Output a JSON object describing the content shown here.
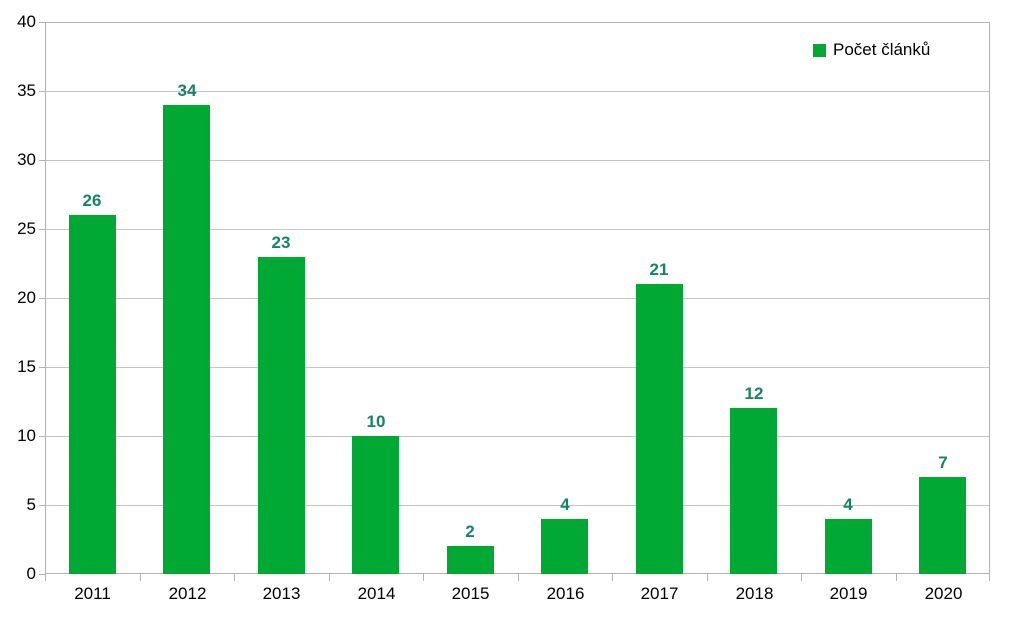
{
  "chart_data": {
    "type": "bar",
    "title": "",
    "xlabel": "",
    "ylabel": "",
    "categories": [
      "2011",
      "2012",
      "2013",
      "2014",
      "2015",
      "2016",
      "2017",
      "2018",
      "2019",
      "2020"
    ],
    "series": [
      {
        "name": "Počet článků",
        "values": [
          26,
          34,
          23,
          10,
          2,
          4,
          21,
          12,
          4,
          7
        ]
      }
    ],
    "data_labels_shown": true,
    "ylim": [
      0,
      40
    ],
    "ytick_step": 5,
    "yticks": [
      0,
      5,
      10,
      15,
      20,
      25,
      30,
      35,
      40
    ],
    "grid": "horizontal",
    "legend": {
      "label": "Počet článků",
      "position": "top-right",
      "swatch_icon": "green-square-icon"
    },
    "colors": {
      "bar": "#00A933",
      "data_label": "#158466",
      "grid": "#C5C5C5",
      "axis": "#B3B3B3",
      "text": "#000000",
      "background": "#FFFFFF"
    }
  }
}
